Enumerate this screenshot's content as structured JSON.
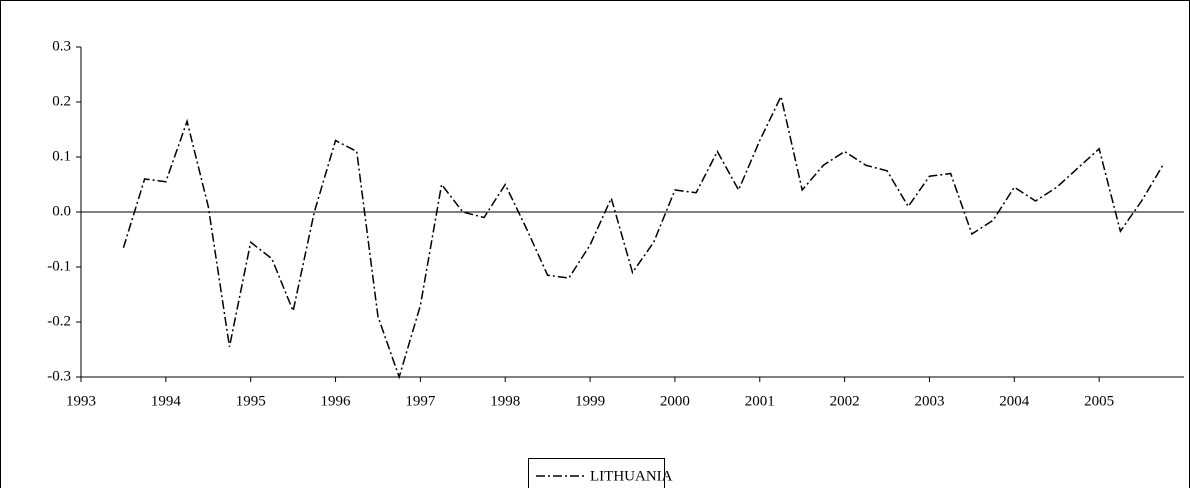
{
  "chart_data": {
    "type": "line",
    "x": [
      1993.5,
      1993.75,
      1994,
      1994.25,
      1994.5,
      1994.75,
      1995,
      1995.25,
      1995.5,
      1995.75,
      1996,
      1996.25,
      1996.5,
      1996.75,
      1997,
      1997.25,
      1997.5,
      1997.75,
      1998,
      1998.25,
      1998.5,
      1998.75,
      1999,
      1999.25,
      1999.5,
      1999.75,
      2000,
      2000.25,
      2000.5,
      2000.75,
      2001,
      2001.25,
      2001.5,
      2001.75,
      2002,
      2002.25,
      2002.5,
      2002.75,
      2003,
      2003.25,
      2003.5,
      2003.75,
      2004,
      2004.25,
      2004.5,
      2004.75,
      2005,
      2005.25,
      2005.5,
      2005.75
    ],
    "series": [
      {
        "name": "LITHUANIA",
        "color": "#000000",
        "values": [
          -0.065,
          0.06,
          0.055,
          0.165,
          0.01,
          -0.245,
          -0.055,
          -0.085,
          -0.18,
          0.0,
          0.13,
          0.11,
          -0.19,
          -0.3,
          -0.17,
          0.05,
          0.0,
          -0.01,
          0.05,
          -0.03,
          -0.115,
          -0.12,
          -0.06,
          0.025,
          -0.11,
          -0.055,
          0.04,
          0.035,
          0.11,
          0.04,
          0.13,
          0.21,
          0.04,
          0.085,
          0.11,
          0.085,
          0.075,
          0.01,
          0.065,
          0.07,
          -0.04,
          -0.015,
          0.045,
          0.02,
          0.045,
          0.08,
          0.115,
          -0.035,
          0.02,
          0.085
        ]
      }
    ],
    "xlim": [
      1993,
      2006
    ],
    "xticks": [
      1993,
      1994,
      1995,
      1996,
      1997,
      1998,
      1999,
      2000,
      2001,
      2002,
      2003,
      2004,
      2005
    ],
    "ylim": [
      -0.3,
      0.3
    ],
    "yticks": [
      -0.3,
      -0.2,
      -0.1,
      {
        "value": 0,
        "label": "0.0"
      },
      0.1,
      0.2,
      0.3
    ],
    "legend": "bottom"
  }
}
